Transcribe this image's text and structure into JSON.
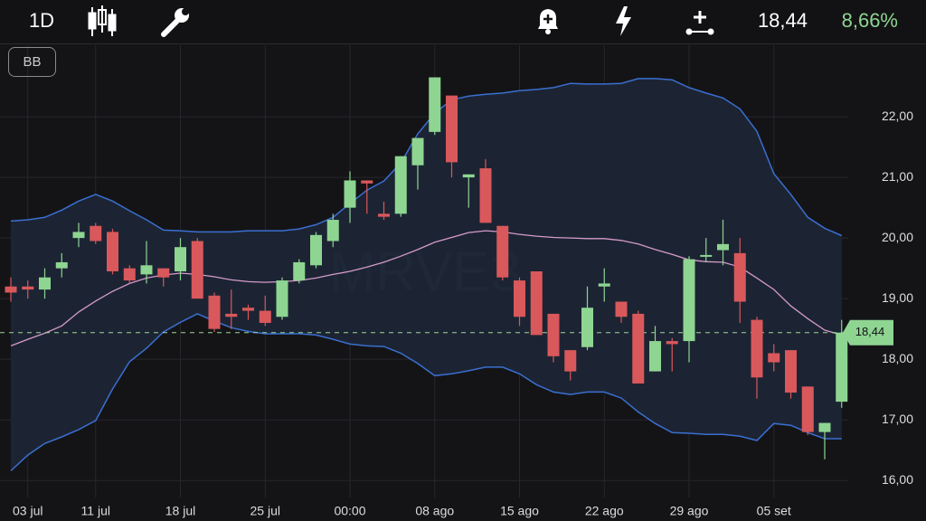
{
  "header": {
    "interval": "1D",
    "price": "18,44",
    "change": "8,66%"
  },
  "indicator_button": "BB",
  "chart_data": {
    "type": "candlestick",
    "watermark": "MRVE3",
    "categories": [
      null,
      "03 jul",
      null,
      null,
      null,
      "11 jul",
      null,
      null,
      null,
      null,
      "18 jul",
      null,
      null,
      null,
      null,
      "25 jul",
      null,
      null,
      null,
      null,
      "00:00",
      null,
      null,
      null,
      null,
      "08 ago",
      null,
      null,
      null,
      null,
      "15 ago",
      null,
      null,
      null,
      null,
      "22 ago",
      null,
      null,
      null,
      null,
      "29 ago",
      null,
      null,
      null,
      null,
      "05 set",
      null,
      null,
      null,
      null
    ],
    "open": [
      19.2,
      19.2,
      19.15,
      19.5,
      20.0,
      20.2,
      20.1,
      19.5,
      19.4,
      19.5,
      19.45,
      19.95,
      19.05,
      18.75,
      18.85,
      18.8,
      18.7,
      19.3,
      19.55,
      19.95,
      20.5,
      20.95,
      20.4,
      20.4,
      21.2,
      21.75,
      22.35,
      21.0,
      21.15,
      20.2,
      19.3,
      19.45,
      18.75,
      18.15,
      18.2,
      19.2,
      18.95,
      18.75,
      17.8,
      18.3,
      18.3,
      19.7,
      19.8,
      19.75,
      18.65,
      18.1,
      18.15,
      17.55,
      16.8,
      17.3
    ],
    "high": [
      19.35,
      19.3,
      19.5,
      19.75,
      20.25,
      20.25,
      20.15,
      19.55,
      19.95,
      19.5,
      20.0,
      20.0,
      19.1,
      19.15,
      18.9,
      19.05,
      19.35,
      19.65,
      20.1,
      20.4,
      21.1,
      20.95,
      20.6,
      21.35,
      21.65,
      22.65,
      22.35,
      21.05,
      21.3,
      20.2,
      19.35,
      19.45,
      18.75,
      18.15,
      19.2,
      19.5,
      18.95,
      18.8,
      18.55,
      18.35,
      19.7,
      20.0,
      20.3,
      20.0,
      18.7,
      18.25,
      18.15,
      17.55,
      16.95,
      18.65
    ],
    "low": [
      18.95,
      19.0,
      19.0,
      19.35,
      19.85,
      19.9,
      19.4,
      19.25,
      19.25,
      19.2,
      19.3,
      19.0,
      18.45,
      18.5,
      18.65,
      18.55,
      18.65,
      19.25,
      19.5,
      19.85,
      20.25,
      20.4,
      20.3,
      20.35,
      20.8,
      21.7,
      21.0,
      20.5,
      20.25,
      19.3,
      18.55,
      18.4,
      17.95,
      17.65,
      18.15,
      18.95,
      18.6,
      17.6,
      17.8,
      17.8,
      17.95,
      19.6,
      19.55,
      18.6,
      17.35,
      17.8,
      17.35,
      16.75,
      16.35,
      17.2
    ],
    "close": [
      19.1,
      19.15,
      19.35,
      19.6,
      20.1,
      19.95,
      19.45,
      19.3,
      19.55,
      19.35,
      19.85,
      19.0,
      18.5,
      18.7,
      18.8,
      18.6,
      19.3,
      19.6,
      20.05,
      20.3,
      20.95,
      20.9,
      20.35,
      21.35,
      21.65,
      22.65,
      21.25,
      21.05,
      20.25,
      19.35,
      18.7,
      18.4,
      18.05,
      17.8,
      18.85,
      19.25,
      18.7,
      17.6,
      18.3,
      18.25,
      19.65,
      19.72,
      19.9,
      18.95,
      17.7,
      17.95,
      17.45,
      16.8,
      16.95,
      18.44
    ],
    "up_color": "#8ed592",
    "down_color": "#d9585b",
    "bands": {
      "upper": [
        20.28,
        20.3,
        20.34,
        20.46,
        20.61,
        20.72,
        20.61,
        20.45,
        20.3,
        20.13,
        20.12,
        20.1,
        20.1,
        20.1,
        20.12,
        20.12,
        20.12,
        20.15,
        20.22,
        20.34,
        20.57,
        20.79,
        20.94,
        21.24,
        21.72,
        22.06,
        22.28,
        22.34,
        22.37,
        22.39,
        22.43,
        22.45,
        22.48,
        22.55,
        22.54,
        22.54,
        22.55,
        22.63,
        22.63,
        22.61,
        22.48,
        22.39,
        22.31,
        22.13,
        21.76,
        21.06,
        20.72,
        20.34,
        20.16,
        20.04
      ],
      "middle": [
        18.22,
        18.33,
        18.43,
        18.55,
        18.78,
        18.96,
        19.12,
        19.25,
        19.34,
        19.39,
        19.42,
        19.4,
        19.36,
        19.31,
        19.28,
        19.27,
        19.28,
        19.3,
        19.34,
        19.4,
        19.45,
        19.52,
        19.6,
        19.7,
        19.81,
        19.93,
        20.01,
        20.09,
        20.12,
        20.1,
        20.06,
        20.03,
        20.01,
        20.0,
        19.99,
        19.99,
        19.96,
        19.9,
        19.81,
        19.73,
        19.64,
        19.61,
        19.6,
        19.52,
        19.34,
        19.15,
        18.88,
        18.67,
        18.48,
        18.4
      ],
      "lower": [
        16.16,
        16.42,
        16.61,
        16.72,
        16.84,
        16.99,
        17.51,
        17.96,
        18.18,
        18.45,
        18.61,
        18.75,
        18.63,
        18.52,
        18.46,
        18.42,
        18.42,
        18.42,
        18.4,
        18.33,
        18.25,
        18.22,
        18.21,
        18.1,
        17.93,
        17.73,
        17.76,
        17.81,
        17.87,
        17.87,
        17.76,
        17.58,
        17.46,
        17.42,
        17.46,
        17.46,
        17.36,
        17.13,
        16.94,
        16.79,
        16.78,
        16.76,
        16.76,
        16.73,
        16.66,
        16.94,
        16.91,
        16.79,
        16.69,
        16.69
      ],
      "band_color": "#3a6fd0",
      "middle_color": "#d49ac9",
      "fill_color": "#1d2636"
    },
    "last_price": {
      "value": 18.44,
      "label": "18,44"
    },
    "ylim": [
      15.72,
      23.18
    ],
    "yticks": [
      {
        "value": 16,
        "label": "16,00"
      },
      {
        "value": 17,
        "label": "17,00"
      },
      {
        "value": 18,
        "label": "18,00"
      },
      {
        "value": 19,
        "label": "19,00"
      },
      {
        "value": 20,
        "label": "20,00"
      },
      {
        "value": 21,
        "label": "21,00"
      },
      {
        "value": 22,
        "label": "22,00"
      }
    ],
    "grid": true
  }
}
